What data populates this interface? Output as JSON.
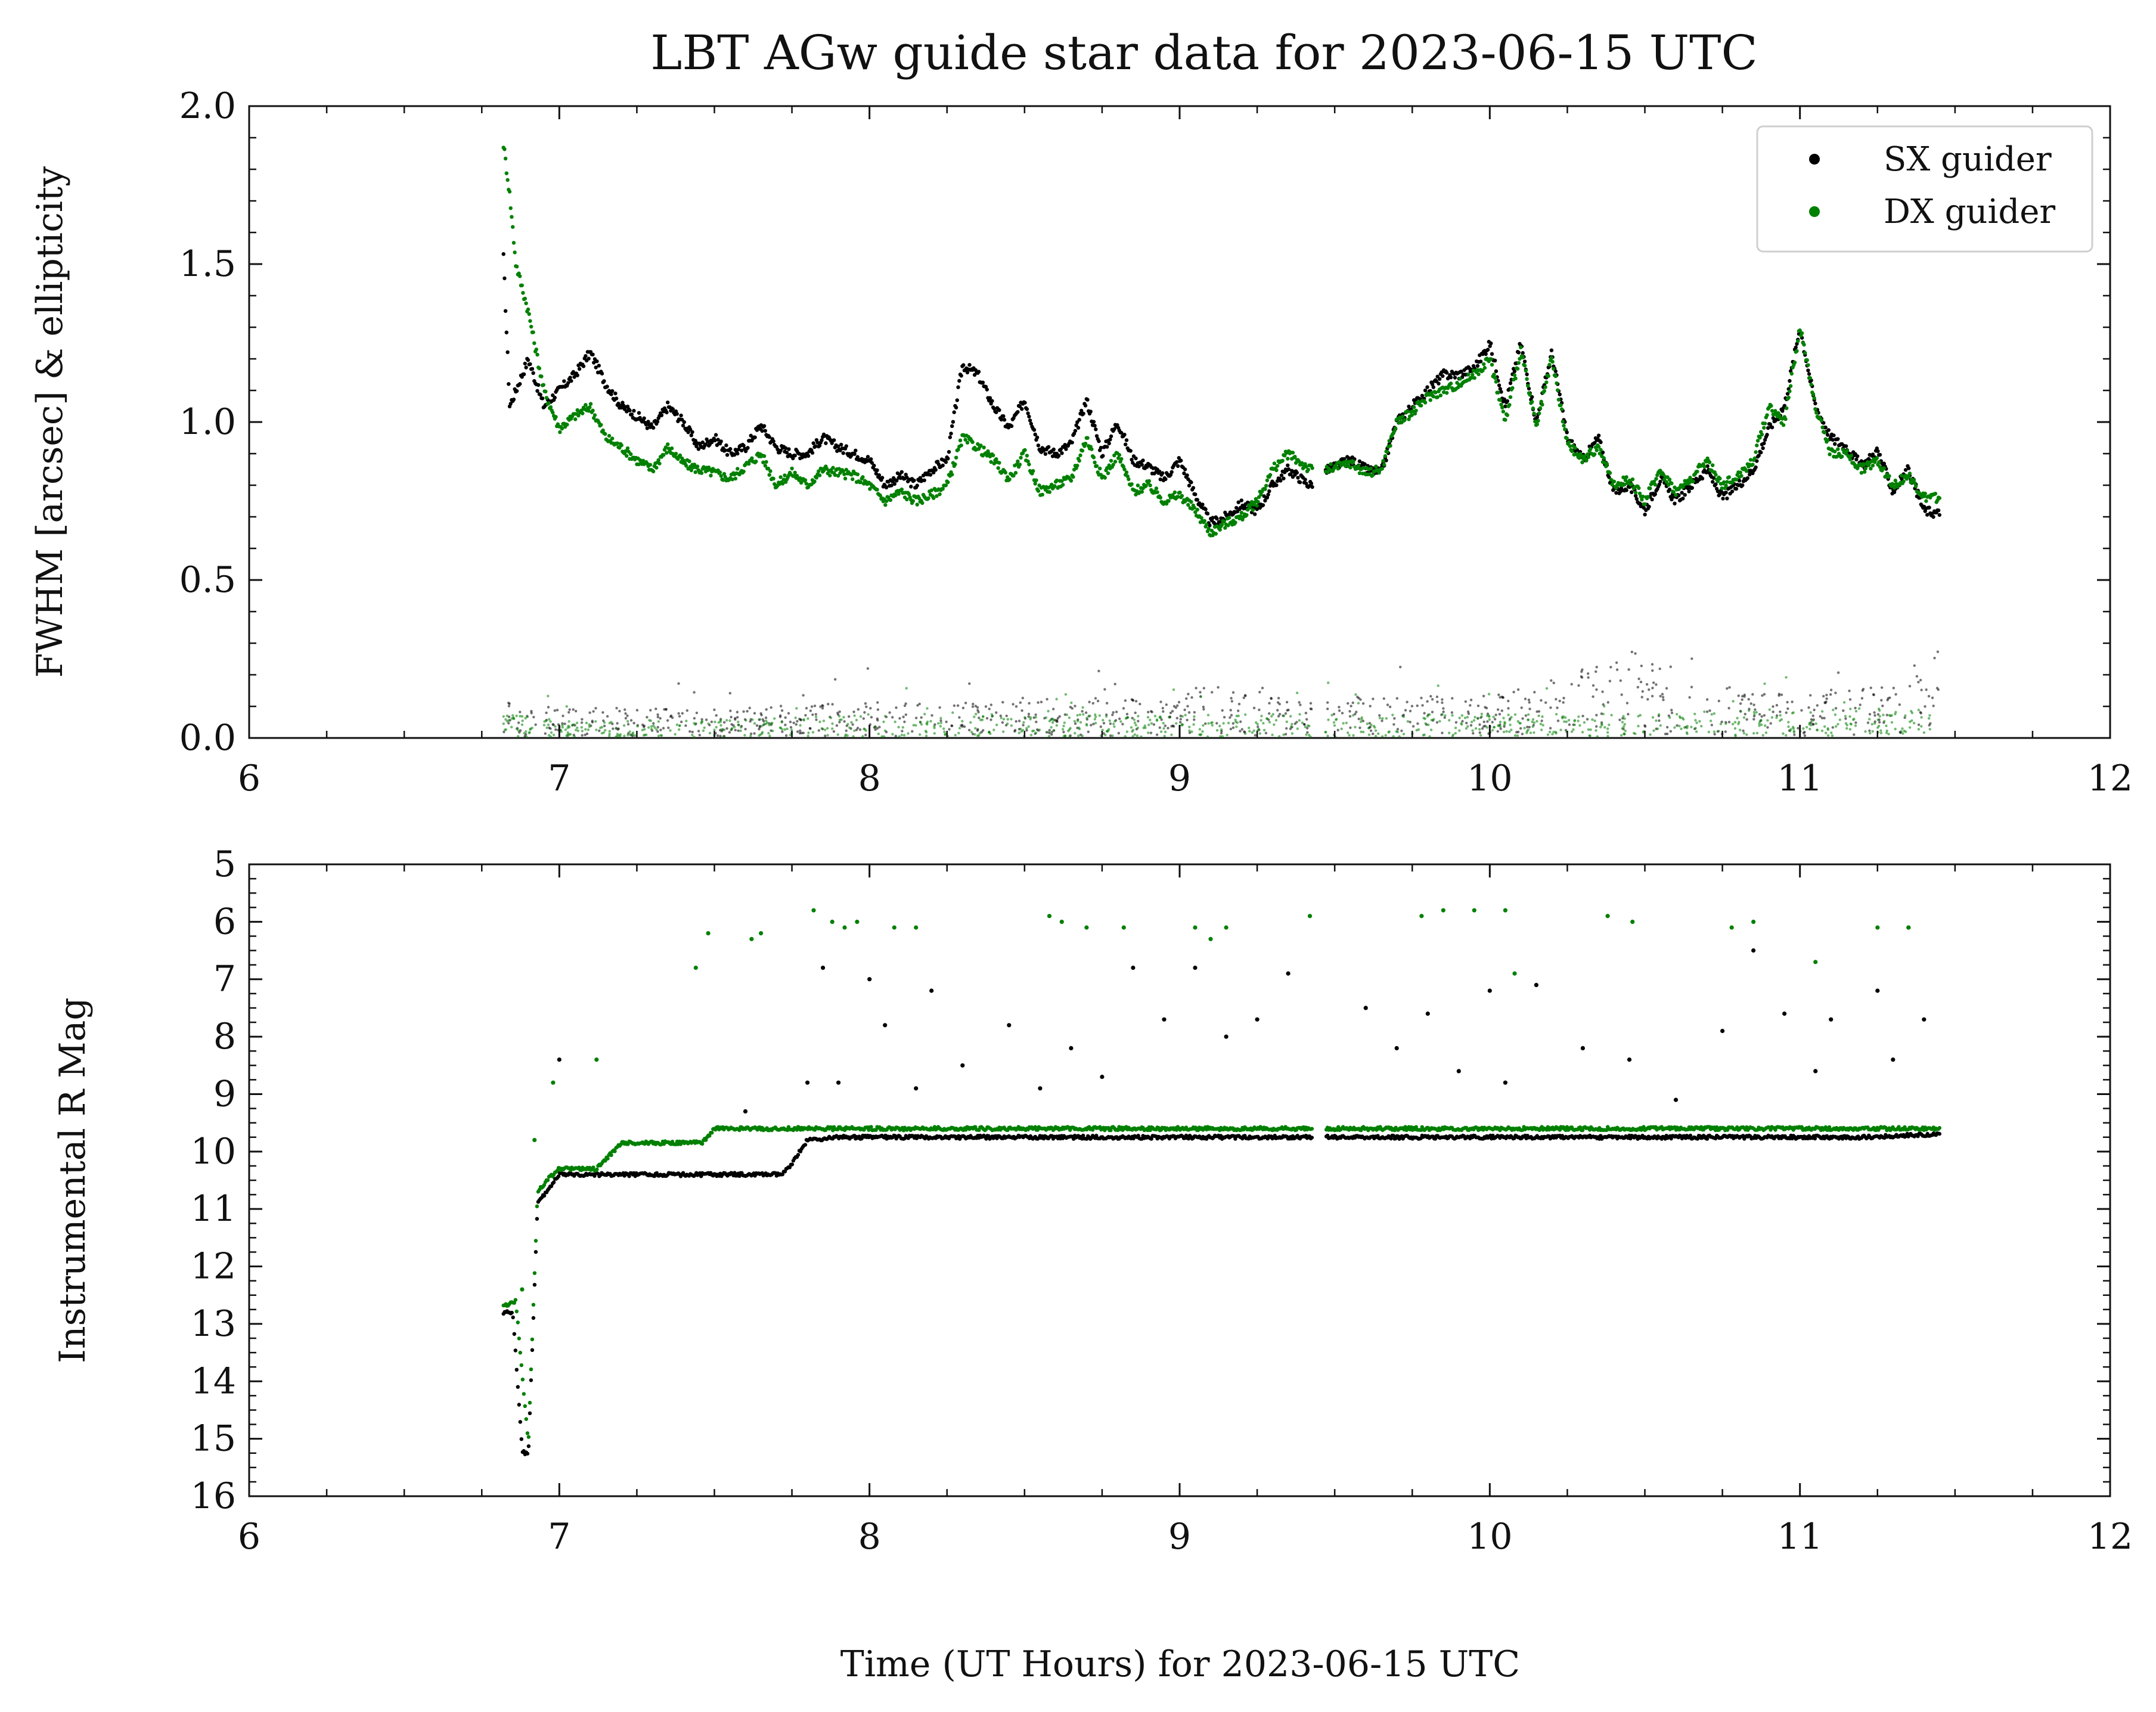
{
  "title": "LBT AGw guide star data for 2023-06-15 UTC",
  "xlabel": "Time (UT Hours) for 2023-06-15 UTC",
  "legend": {
    "placement": "top-right",
    "entries": [
      {
        "label": "SX guider",
        "color": "#000000"
      },
      {
        "label": "DX guider",
        "color": "#008000"
      }
    ]
  },
  "chart_data": [
    {
      "type": "scatter",
      "panel": "top",
      "ylabel": "FWHM [arcsec] & ellipticity",
      "xlim": [
        6,
        12
      ],
      "ylim": [
        0,
        2.0
      ],
      "xticks": [
        "6",
        "7",
        "8",
        "9",
        "10",
        "11",
        "12"
      ],
      "yticks": [
        "0.0",
        "0.5",
        "1.0",
        "1.5",
        "2.0"
      ],
      "grid": false,
      "series": [
        {
          "name": "SX guider",
          "color": "#000000",
          "metric": "FWHM",
          "x": [
            6.82,
            6.84,
            6.86,
            6.9,
            6.95,
            7.0,
            7.05,
            7.1,
            7.15,
            7.2,
            7.25,
            7.3,
            7.35,
            7.4,
            7.45,
            7.5,
            7.55,
            7.6,
            7.65,
            7.7,
            7.75,
            7.8,
            7.85,
            7.9,
            7.95,
            8.0,
            8.05,
            8.1,
            8.15,
            8.2,
            8.25,
            8.3,
            8.35,
            8.4,
            8.45,
            8.5,
            8.55,
            8.6,
            8.65,
            8.7,
            8.75,
            8.8,
            8.85,
            8.9,
            8.95,
            9.0,
            9.05,
            9.1,
            9.15,
            9.2,
            9.25,
            9.3,
            9.35,
            9.42,
            9.48,
            9.55,
            9.6,
            9.65,
            9.7,
            9.75,
            9.8,
            9.85,
            9.9,
            9.95,
            10.0,
            10.05,
            10.1,
            10.15,
            10.2,
            10.25,
            10.3,
            10.35,
            10.4,
            10.45,
            10.5,
            10.55,
            10.6,
            10.65,
            10.7,
            10.75,
            10.8,
            10.85,
            10.9,
            10.95,
            11.0,
            11.05,
            11.1,
            11.15,
            11.2,
            11.25,
            11.3,
            11.35,
            11.4,
            11.45
          ],
          "y": [
            1.52,
            1.05,
            1.1,
            1.2,
            1.05,
            1.1,
            1.15,
            1.22,
            1.12,
            1.05,
            1.02,
            0.98,
            1.05,
            1.0,
            0.92,
            0.95,
            0.9,
            0.92,
            0.99,
            0.92,
            0.9,
            0.9,
            0.95,
            0.92,
            0.9,
            0.88,
            0.8,
            0.83,
            0.8,
            0.85,
            0.88,
            1.18,
            1.15,
            1.05,
            0.98,
            1.07,
            0.92,
            0.9,
            0.93,
            1.07,
            0.9,
            1.0,
            0.88,
            0.86,
            0.82,
            0.88,
            0.77,
            0.68,
            0.7,
            0.74,
            0.72,
            0.8,
            0.85,
            0.8,
            0.85,
            0.88,
            0.85,
            0.84,
            1.0,
            1.05,
            1.1,
            1.15,
            1.15,
            1.17,
            1.25,
            1.05,
            1.25,
            1.0,
            1.22,
            0.95,
            0.88,
            0.95,
            0.78,
            0.8,
            0.72,
            0.82,
            0.75,
            0.8,
            0.85,
            0.76,
            0.8,
            0.85,
            0.98,
            1.05,
            1.3,
            1.05,
            0.95,
            0.92,
            0.86,
            0.91,
            0.78,
            0.85,
            0.72,
            0.71
          ]
        },
        {
          "name": "DX guider",
          "color": "#008000",
          "metric": "FWHM",
          "x": [
            6.82,
            6.84,
            6.86,
            6.9,
            6.95,
            7.0,
            7.05,
            7.1,
            7.15,
            7.2,
            7.25,
            7.3,
            7.35,
            7.4,
            7.45,
            7.5,
            7.55,
            7.6,
            7.65,
            7.7,
            7.75,
            7.8,
            7.85,
            7.9,
            7.95,
            8.0,
            8.05,
            8.1,
            8.15,
            8.2,
            8.25,
            8.3,
            8.35,
            8.4,
            8.45,
            8.5,
            8.55,
            8.6,
            8.65,
            8.7,
            8.75,
            8.8,
            8.85,
            8.9,
            8.95,
            9.0,
            9.05,
            9.1,
            9.15,
            9.2,
            9.25,
            9.3,
            9.35,
            9.42,
            9.48,
            9.55,
            9.6,
            9.65,
            9.7,
            9.75,
            9.8,
            9.85,
            9.9,
            9.95,
            10.0,
            10.05,
            10.1,
            10.15,
            10.2,
            10.25,
            10.3,
            10.35,
            10.4,
            10.45,
            10.5,
            10.55,
            10.6,
            10.65,
            10.7,
            10.75,
            10.8,
            10.85,
            10.9,
            10.95,
            11.0,
            11.05,
            11.1,
            11.15,
            11.2,
            11.25,
            11.3,
            11.35,
            11.4,
            11.45
          ],
          "y": [
            1.88,
            1.72,
            1.5,
            1.35,
            1.1,
            0.98,
            1.02,
            1.05,
            0.95,
            0.92,
            0.88,
            0.85,
            0.92,
            0.87,
            0.85,
            0.84,
            0.82,
            0.86,
            0.9,
            0.8,
            0.84,
            0.8,
            0.85,
            0.84,
            0.83,
            0.8,
            0.75,
            0.78,
            0.75,
            0.77,
            0.8,
            0.95,
            0.92,
            0.88,
            0.82,
            0.9,
            0.78,
            0.8,
            0.82,
            0.95,
            0.82,
            0.9,
            0.78,
            0.8,
            0.75,
            0.77,
            0.72,
            0.65,
            0.68,
            0.7,
            0.75,
            0.85,
            0.9,
            0.85,
            0.85,
            0.87,
            0.84,
            0.85,
            1.0,
            1.03,
            1.08,
            1.1,
            1.12,
            1.15,
            1.2,
            1.0,
            1.23,
            0.98,
            1.2,
            0.93,
            0.88,
            0.92,
            0.8,
            0.82,
            0.75,
            0.85,
            0.78,
            0.82,
            0.88,
            0.8,
            0.83,
            0.88,
            1.05,
            1.0,
            1.3,
            1.05,
            0.9,
            0.9,
            0.85,
            0.88,
            0.8,
            0.83,
            0.76,
            0.76
          ]
        },
        {
          "name": "SX guider",
          "color": "#000000",
          "metric": "ellipticity",
          "x": [
            6.82,
            7.0,
            7.5,
            8.0,
            8.5,
            9.0,
            9.1,
            9.42,
            9.48,
            10.0,
            10.5,
            10.55,
            11.0,
            11.3,
            11.45
          ],
          "y": [
            0.06,
            0.05,
            0.05,
            0.06,
            0.06,
            0.07,
            0.1,
            0.06,
            0.07,
            0.07,
            0.15,
            0.1,
            0.07,
            0.1,
            0.15
          ]
        },
        {
          "name": "DX guider",
          "color": "#008000",
          "metric": "ellipticity",
          "x": [
            6.82,
            7.0,
            7.5,
            8.0,
            8.5,
            9.0,
            9.42,
            9.48,
            10.0,
            10.5,
            11.0,
            11.45
          ],
          "y": [
            0.04,
            0.03,
            0.03,
            0.04,
            0.04,
            0.04,
            0.04,
            0.04,
            0.04,
            0.04,
            0.05,
            0.05
          ]
        }
      ]
    },
    {
      "type": "scatter",
      "panel": "bottom",
      "ylabel": "Instrumental R Mag",
      "xlim": [
        6,
        12
      ],
      "ylim": [
        16,
        5
      ],
      "inverted_y": true,
      "xticks": [
        "6",
        "7",
        "8",
        "9",
        "10",
        "11",
        "12"
      ],
      "yticks": [
        "5",
        "6",
        "7",
        "8",
        "9",
        "10",
        "11",
        "12",
        "13",
        "14",
        "15",
        "16"
      ],
      "grid": false,
      "series": [
        {
          "name": "SX guider",
          "color": "#000000",
          "x": [
            6.82,
            6.85,
            6.88,
            6.9,
            6.93,
            7.0,
            7.1,
            7.2,
            7.3,
            7.4,
            7.5,
            7.6,
            7.72,
            7.75,
            7.8,
            7.9,
            8.0,
            8.2,
            8.4,
            8.6,
            8.8,
            9.0,
            9.2,
            9.42,
            9.48,
            9.6,
            9.8,
            10.0,
            10.2,
            10.4,
            10.6,
            10.8,
            11.0,
            11.2,
            11.45
          ],
          "y": [
            12.8,
            12.8,
            15.2,
            15.3,
            10.9,
            10.4,
            10.4,
            10.4,
            10.4,
            10.4,
            10.4,
            10.4,
            10.4,
            10.2,
            9.8,
            9.75,
            9.75,
            9.75,
            9.75,
            9.75,
            9.75,
            9.75,
            9.75,
            9.75,
            9.75,
            9.75,
            9.75,
            9.75,
            9.75,
            9.75,
            9.75,
            9.75,
            9.75,
            9.75,
            9.7
          ],
          "outliers_x": [
            7.0,
            7.6,
            7.8,
            7.85,
            7.9,
            8.0,
            8.05,
            8.15,
            8.2,
            8.3,
            8.45,
            8.55,
            8.65,
            8.75,
            8.85,
            8.95,
            9.05,
            9.15,
            9.25,
            9.35,
            9.6,
            9.7,
            9.8,
            9.9,
            10.0,
            10.05,
            10.15,
            10.3,
            10.45,
            10.6,
            10.75,
            10.85,
            10.95,
            11.05,
            11.1,
            11.25,
            11.3,
            11.35,
            11.4
          ],
          "outliers_y": [
            8.4,
            9.3,
            8.8,
            6.8,
            8.8,
            7.0,
            7.8,
            8.9,
            7.2,
            8.5,
            7.8,
            8.9,
            8.2,
            8.7,
            6.8,
            7.7,
            6.8,
            8.0,
            7.7,
            6.9,
            7.5,
            8.2,
            7.6,
            8.6,
            7.2,
            8.8,
            7.1,
            8.2,
            8.4,
            9.1,
            7.9,
            6.5,
            7.6,
            8.6,
            7.7,
            7.2,
            8.4,
            6.1,
            7.7
          ]
        },
        {
          "name": "DX guider",
          "color": "#008000",
          "x": [
            6.82,
            6.86,
            6.9,
            6.93,
            6.96,
            7.0,
            7.05,
            7.12,
            7.2,
            7.3,
            7.4,
            7.46,
            7.5,
            7.6,
            7.7,
            7.8,
            7.9,
            8.0,
            8.2,
            8.4,
            8.6,
            8.8,
            9.0,
            9.2,
            9.42,
            9.48,
            9.6,
            9.8,
            10.0,
            10.2,
            10.4,
            10.6,
            10.8,
            11.0,
            11.2,
            11.45
          ],
          "y": [
            12.7,
            12.6,
            15.1,
            10.7,
            10.5,
            10.3,
            10.3,
            10.3,
            9.85,
            9.85,
            9.85,
            9.85,
            9.6,
            9.6,
            9.6,
            9.6,
            9.6,
            9.6,
            9.6,
            9.6,
            9.6,
            9.6,
            9.6,
            9.6,
            9.6,
            9.6,
            9.6,
            9.6,
            9.6,
            9.6,
            9.6,
            9.6,
            9.6,
            9.6,
            9.6,
            9.6
          ],
          "outliers_x": [
            6.88,
            6.92,
            6.98,
            7.12,
            7.44,
            7.48,
            7.62,
            7.65,
            7.82,
            7.88,
            7.92,
            7.96,
            8.08,
            8.15,
            8.58,
            8.62,
            8.7,
            8.82,
            9.05,
            9.1,
            9.15,
            9.42,
            9.78,
            9.85,
            9.95,
            10.05,
            10.08,
            10.38,
            10.46,
            10.78,
            10.85,
            11.05,
            11.25,
            11.35
          ],
          "outliers_y": [
            12.4,
            9.8,
            8.8,
            8.4,
            6.8,
            6.2,
            6.3,
            6.2,
            5.8,
            6.0,
            6.1,
            6.0,
            6.1,
            6.1,
            5.9,
            6.0,
            6.1,
            6.1,
            6.1,
            6.3,
            6.1,
            5.9,
            5.9,
            5.8,
            5.8,
            5.8,
            6.9,
            5.9,
            6.0,
            6.1,
            6.0,
            6.7,
            6.1,
            6.1
          ]
        }
      ]
    }
  ]
}
